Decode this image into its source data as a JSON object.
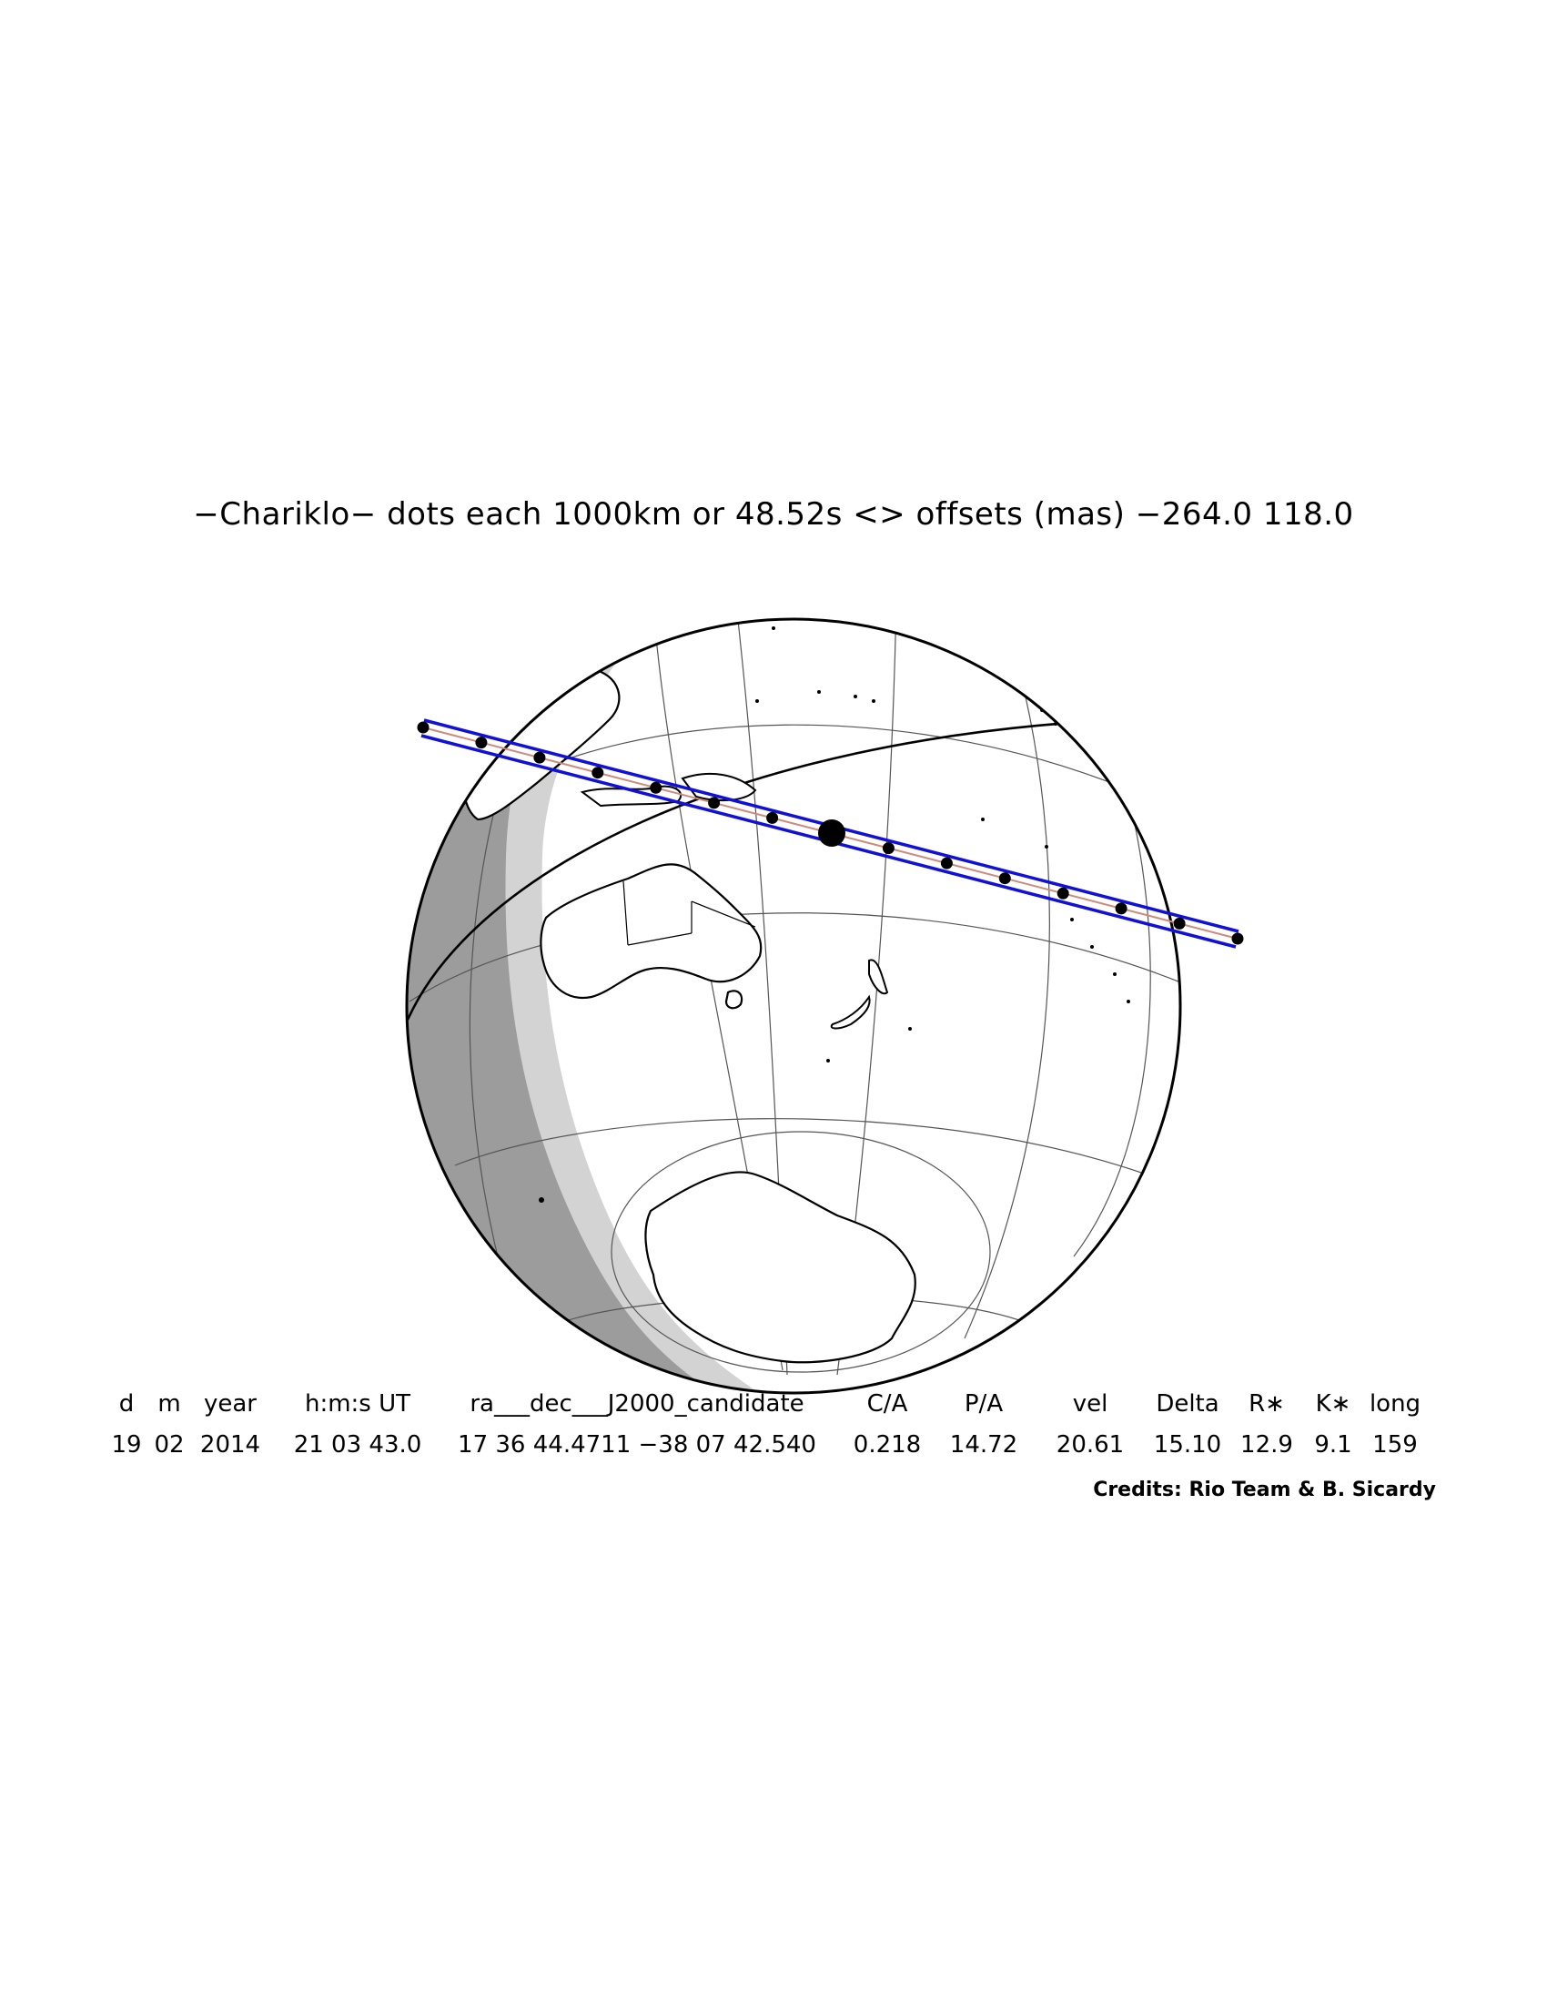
{
  "title": "−Chariklo− dots each 1000km or 48.52s <> offsets (mas) −264.0  118.0",
  "table": {
    "headers": [
      "d",
      "m",
      "year",
      "h:m:s UT",
      "ra___dec___J2000_candidate",
      "C/A",
      "P/A",
      "vel",
      "Delta",
      "R∗",
      "K∗",
      "long"
    ],
    "values": [
      "19",
      "02",
      "2014",
      "21 03 43.0",
      "17 36 44.4711 −38 07 42.540",
      "0.218",
      "14.72",
      "20.61",
      "15.10",
      "12.9",
      "9.1",
      "159"
    ]
  },
  "credits": "Credits: Rio Team & B. Sicardy",
  "colors": {
    "path": "#1010d8",
    "centerline": "#d08a7a",
    "night": "#9c9c9c",
    "twilight": "#d3d3d3",
    "outline": "#000000",
    "grid": "#555555"
  }
}
